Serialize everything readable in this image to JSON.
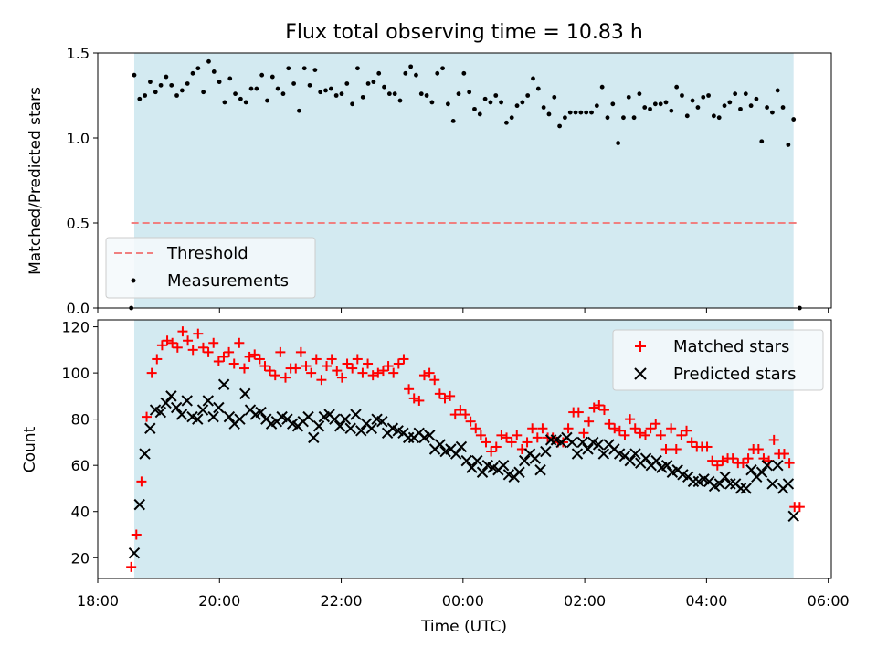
{
  "chart_data": [
    {
      "type": "scatter",
      "title": "Flux total observing time = 10.83 h",
      "xlabel": "",
      "ylabel": "Matched/Predicted stars",
      "ylim": [
        0,
        1.5
      ],
      "yticks": [
        0.0,
        0.5,
        1.0,
        1.5
      ],
      "ytick_labels": [
        "0.0",
        "0.5",
        "1.0",
        "1.5"
      ],
      "observing_window_hours": [
        18.6,
        29.43
      ],
      "observing_window_color": "#d3eaf1",
      "threshold": {
        "value": 0.5,
        "x_range": [
          18.55,
          29.5
        ],
        "color": "#f08080"
      },
      "legend": {
        "position": "lower-left",
        "entries": [
          "Threshold",
          "Measurements"
        ]
      },
      "series": [
        {
          "name": "Measurements",
          "color": "#000000",
          "values": [
            1.37,
            1.23,
            1.25,
            1.33,
            1.27,
            1.31,
            1.36,
            1.31,
            1.25,
            1.28,
            1.32,
            1.38,
            1.41,
            1.27,
            1.45,
            1.39,
            1.33,
            1.21,
            1.35,
            1.26,
            1.23,
            1.21,
            1.29,
            1.29,
            1.37,
            1.22,
            1.36,
            1.29,
            1.26,
            1.41,
            1.32,
            1.16,
            1.41,
            1.31,
            1.4,
            1.27,
            1.28,
            1.29,
            1.25,
            1.26,
            1.32,
            1.2,
            1.41,
            1.24,
            1.32,
            1.33,
            1.38,
            1.3,
            1.26,
            1.26,
            1.22,
            1.38,
            1.42,
            1.37,
            1.26,
            1.25,
            1.21,
            1.38,
            1.41,
            1.2,
            1.1,
            1.26,
            1.38,
            1.27,
            1.17,
            1.14,
            1.23,
            1.21,
            1.25,
            1.21,
            1.09,
            1.12,
            1.19,
            1.21,
            1.25,
            1.35,
            1.29,
            1.18,
            1.14,
            1.24,
            1.07,
            1.12,
            1.15,
            1.15,
            1.15,
            1.15,
            1.15,
            1.19,
            1.3,
            1.12,
            1.2,
            0.97,
            1.12,
            1.24,
            1.12,
            1.26,
            1.18,
            1.17,
            1.2,
            1.2,
            1.21,
            1.16,
            1.3,
            1.25,
            1.13,
            1.22,
            1.18,
            1.24,
            1.25,
            1.13,
            1.12,
            1.19,
            1.21,
            1.26,
            1.17,
            1.26,
            1.19,
            1.23,
            0.98,
            1.18,
            1.15,
            1.28,
            1.18,
            0.96,
            1.11
          ]
        }
      ],
      "zero_markers": [
        {
          "x": 18.55,
          "y": 0.0
        },
        {
          "x": 29.53,
          "y": 0.0
        }
      ]
    },
    {
      "type": "scatter",
      "title": "",
      "xlabel": "Time (UTC)",
      "ylabel": "Count",
      "ylim": [
        11,
        123
      ],
      "yticks": [
        20,
        40,
        60,
        80,
        100,
        120
      ],
      "xlim": [
        18.0,
        30.05
      ],
      "xticks": [
        18,
        20,
        22,
        24,
        26,
        28,
        30
      ],
      "xtick_labels": [
        "18:00",
        "20:00",
        "22:00",
        "00:00",
        "02:00",
        "04:00",
        "06:00"
      ],
      "legend": {
        "position": "upper-right",
        "entries": [
          "Matched stars",
          "Predicted stars"
        ]
      },
      "series": [
        {
          "name": "Matched stars",
          "color": "#ff0000",
          "marker": "plus",
          "values": [
            16,
            30,
            53,
            81,
            100,
            106,
            112,
            114,
            113,
            111,
            118,
            114,
            110,
            117,
            111,
            109,
            113,
            105,
            107,
            109,
            104,
            113,
            102,
            107,
            108,
            106,
            103,
            101,
            99,
            109,
            98,
            102,
            102,
            109,
            103,
            100,
            106,
            97,
            103,
            106,
            101,
            98,
            104,
            102,
            106,
            100,
            104,
            99,
            100,
            101,
            103,
            100,
            104,
            106,
            93,
            89,
            88,
            99,
            100,
            97,
            91,
            89,
            90,
            82,
            84,
            82,
            79,
            76,
            73,
            70,
            66,
            68,
            73,
            72,
            70,
            73,
            67,
            70,
            76,
            72,
            76,
            72,
            72,
            70,
            70,
            76,
            83,
            83,
            74,
            79,
            85,
            86,
            84,
            78,
            76,
            75,
            73,
            80,
            76,
            74,
            73,
            76,
            78,
            73,
            67,
            76,
            67,
            73,
            75,
            70,
            68,
            68,
            68,
            62,
            60,
            62,
            63,
            63,
            61,
            61,
            63,
            67,
            67,
            63,
            62,
            71,
            65,
            65,
            61,
            42,
            42
          ]
        },
        {
          "name": "Predicted stars",
          "color": "#000000",
          "marker": "x",
          "values": [
            22,
            43,
            65,
            76,
            84,
            83,
            87,
            90,
            85,
            82,
            88,
            81,
            80,
            84,
            88,
            81,
            85,
            95,
            81,
            78,
            80,
            91,
            84,
            82,
            83,
            80,
            78,
            79,
            81,
            80,
            78,
            77,
            79,
            81,
            72,
            77,
            81,
            82,
            80,
            77,
            80,
            76,
            82,
            75,
            78,
            76,
            80,
            79,
            74,
            76,
            75,
            74,
            72,
            72,
            74,
            72,
            73,
            67,
            69,
            66,
            67,
            65,
            68,
            62,
            59,
            62,
            57,
            60,
            59,
            58,
            60,
            56,
            55,
            57,
            62,
            65,
            63,
            58,
            66,
            71,
            71,
            70,
            72,
            70,
            65,
            70,
            67,
            70,
            69,
            65,
            69,
            67,
            65,
            64,
            62,
            65,
            61,
            63,
            60,
            62,
            59,
            60,
            57,
            58,
            56,
            55,
            53,
            53,
            54,
            53,
            51,
            52,
            55,
            52,
            52,
            50,
            50,
            58,
            55,
            57,
            60,
            52,
            60,
            50,
            52,
            38
          ]
        }
      ]
    }
  ]
}
